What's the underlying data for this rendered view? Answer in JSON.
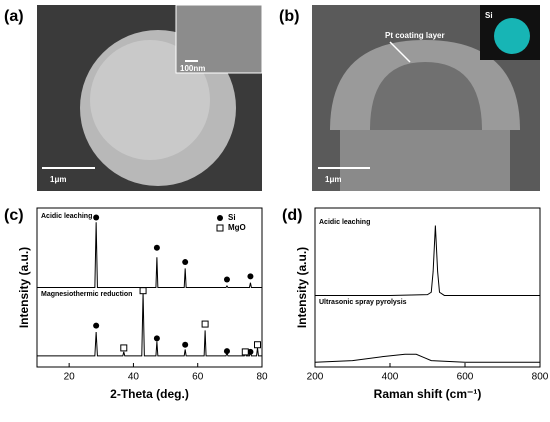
{
  "panels": [
    {
      "label": "(a)",
      "scale_bar": "1μm",
      "inset_scale_bar": "100nm"
    },
    {
      "label": "(b)",
      "scale_bar": "1μm",
      "annotation": "Pt coating layer",
      "inset_label": "Si"
    },
    {
      "label": "(c)"
    },
    {
      "label": "(d)"
    }
  ],
  "chart_data": [
    {
      "type": "line",
      "xlabel": "2-Theta (deg.)",
      "ylabel": "Intensity (a.u.)",
      "xlim": [
        10,
        80
      ],
      "xticks": [
        20,
        40,
        60,
        80
      ],
      "ylim": [
        0,
        100
      ],
      "color": "#000000",
      "series": [
        {
          "name": "Acidic leaching",
          "x": [
            10,
            28,
            28.4,
            28.8,
            47,
            47.3,
            47.6,
            55.8,
            56.1,
            56.4,
            68.8,
            69.1,
            69.4,
            76.1,
            76.4,
            76.7,
            80
          ],
          "values": [
            50,
            50,
            91,
            50,
            50,
            69,
            50,
            50,
            62,
            50,
            50,
            51,
            50,
            50,
            53,
            50,
            50
          ]
        },
        {
          "name": "Magnesiothermic reduction",
          "x": [
            10,
            28,
            28.4,
            28.8,
            36.7,
            37,
            37.3,
            42.6,
            43,
            43.4,
            47,
            47.3,
            47.6,
            55.8,
            56.1,
            56.4,
            62,
            62.3,
            62.6,
            68.8,
            69.1,
            69.4,
            74.5,
            74.8,
            75.1,
            76.1,
            76.4,
            76.7,
            78.3,
            78.6,
            78.9,
            80
          ],
          "values": [
            7,
            7,
            22,
            7,
            7,
            9.5,
            7,
            7,
            47,
            7,
            7,
            16,
            7,
            7,
            11,
            7,
            7,
            23,
            7,
            7,
            9,
            7,
            7,
            9,
            7,
            7,
            10,
            7,
            7,
            12,
            7,
            7
          ]
        }
      ],
      "markers": [
        {
          "name": "Si",
          "symbol": "filled-circle",
          "x": [
            28.4,
            47.3,
            56.1,
            69.1,
            76.4,
            28.4,
            47.3,
            56.1,
            69.1,
            76.4
          ],
          "values": [
            94,
            75,
            66,
            55,
            57,
            26,
            18,
            14,
            10,
            9.5
          ]
        },
        {
          "name": "MgO",
          "symbol": "open-square",
          "x": [
            37,
            43,
            62.3,
            74.8,
            78.6
          ],
          "values": [
            12,
            48,
            27,
            9.5,
            14
          ]
        }
      ]
    },
    {
      "type": "line",
      "xlabel": "Raman shift (cm⁻¹)",
      "ylabel": "Intensity (a.u.)",
      "xlim": [
        200,
        800
      ],
      "xticks": [
        200,
        400,
        600,
        800
      ],
      "ylim": [
        0,
        100
      ],
      "color": "#000000",
      "series": [
        {
          "name": "Acidic leaching",
          "x": [
            200,
            400,
            500,
            510,
            515,
            521,
            527,
            532,
            545,
            600,
            800
          ],
          "values": [
            45,
            45,
            45.5,
            47,
            60,
            89,
            60,
            47,
            45,
            45,
            45
          ]
        },
        {
          "name": "Ultrasonic spray pyrolysis",
          "x": [
            200,
            300,
            380,
            440,
            470,
            490,
            510,
            600,
            800
          ],
          "values": [
            3,
            4,
            6.5,
            8,
            8,
            6,
            4,
            3,
            3
          ]
        }
      ]
    }
  ]
}
